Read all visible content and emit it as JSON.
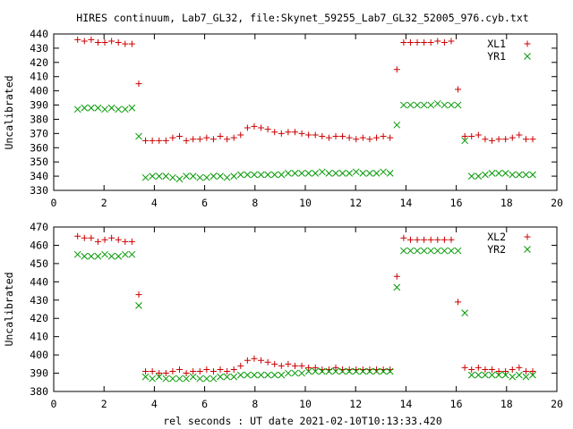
{
  "title": "HIRES continuum, Lab7_GL32, file:Skynet_59255_Lab7_GL32_52005_976.cyb.txt",
  "xlabel": "rel seconds : UT date 2021-02-10T10:13:33.420",
  "colors": {
    "plus": "#cc0000",
    "cross": "#009900",
    "axis": "#000000"
  },
  "chart_data": [
    {
      "type": "scatter",
      "ylabel": "Uncalibrated",
      "xlim": [
        0,
        20
      ],
      "ylim": [
        330,
        440
      ],
      "xticks": [
        0,
        2,
        4,
        6,
        8,
        10,
        12,
        14,
        16,
        18,
        20
      ],
      "yticks": [
        330,
        340,
        350,
        360,
        370,
        380,
        390,
        400,
        410,
        420,
        430,
        440
      ],
      "legend": "top-right",
      "series": [
        {
          "name": "XL1",
          "marker": "plus",
          "x": [
            0.95,
            1.22,
            1.49,
            1.76,
            2.03,
            2.3,
            2.57,
            2.84,
            3.11,
            3.38,
            3.65,
            3.92,
            4.19,
            4.46,
            4.73,
            5.0,
            5.27,
            5.54,
            5.81,
            6.08,
            6.35,
            6.62,
            6.89,
            7.16,
            7.43,
            7.7,
            7.97,
            8.24,
            8.51,
            8.78,
            9.05,
            9.32,
            9.59,
            9.86,
            10.13,
            10.4,
            10.67,
            10.94,
            11.21,
            11.48,
            11.75,
            12.02,
            12.29,
            12.56,
            12.83,
            13.1,
            13.37,
            13.64,
            13.91,
            14.18,
            14.45,
            14.72,
            14.99,
            15.26,
            15.53,
            15.8,
            16.07,
            16.34,
            16.61,
            16.88,
            17.15,
            17.42,
            17.69,
            17.96,
            18.23,
            18.5,
            18.77,
            19.04
          ],
          "y": [
            436,
            435,
            436,
            434,
            434,
            435,
            434,
            433,
            433,
            405,
            365,
            365,
            365,
            365,
            367,
            368,
            365,
            366,
            366,
            367,
            366,
            368,
            366,
            367,
            369,
            374,
            375,
            374,
            373,
            371,
            370,
            371,
            371,
            370,
            369,
            369,
            368,
            367,
            368,
            368,
            367,
            366,
            367,
            366,
            367,
            368,
            367,
            415,
            434,
            434,
            434,
            434,
            434,
            435,
            434,
            435,
            401,
            368,
            368,
            369,
            366,
            365,
            366,
            366,
            367,
            369,
            366,
            366
          ],
          "note": ""
        },
        {
          "name": "YR1",
          "marker": "cross",
          "x": [
            0.95,
            1.22,
            1.49,
            1.76,
            2.03,
            2.3,
            2.57,
            2.84,
            3.11,
            3.38,
            3.65,
            3.92,
            4.19,
            4.46,
            4.73,
            5.0,
            5.27,
            5.54,
            5.81,
            6.08,
            6.35,
            6.62,
            6.89,
            7.16,
            7.43,
            7.7,
            7.97,
            8.24,
            8.51,
            8.78,
            9.05,
            9.32,
            9.59,
            9.86,
            10.13,
            10.4,
            10.67,
            10.94,
            11.21,
            11.48,
            11.75,
            12.02,
            12.29,
            12.56,
            12.83,
            13.1,
            13.37,
            13.64,
            13.91,
            14.18,
            14.45,
            14.72,
            14.99,
            15.26,
            15.53,
            15.8,
            16.07,
            16.34,
            16.61,
            16.88,
            17.15,
            17.42,
            17.69,
            17.96,
            18.23,
            18.5,
            18.77,
            19.04
          ],
          "y": [
            387,
            388,
            388,
            388,
            387,
            388,
            387,
            387,
            388,
            368,
            339,
            340,
            340,
            340,
            339,
            338,
            340,
            340,
            339,
            339,
            340,
            340,
            339,
            340,
            341,
            341,
            341,
            341,
            341,
            341,
            341,
            342,
            342,
            342,
            342,
            342,
            343,
            342,
            342,
            342,
            342,
            343,
            342,
            342,
            342,
            343,
            342,
            376,
            390,
            390,
            390,
            390,
            390,
            391,
            390,
            390,
            390,
            365,
            340,
            340,
            341,
            342,
            342,
            342,
            341,
            341,
            341,
            341
          ],
          "note": ""
        }
      ]
    },
    {
      "type": "scatter",
      "ylabel": "Uncalibrated",
      "xlim": [
        0,
        20
      ],
      "ylim": [
        380,
        470
      ],
      "xticks": [
        0,
        2,
        4,
        6,
        8,
        10,
        12,
        14,
        16,
        18,
        20
      ],
      "yticks": [
        380,
        390,
        400,
        410,
        420,
        430,
        440,
        450,
        460,
        470
      ],
      "legend": "top-right",
      "series": [
        {
          "name": "XL2",
          "marker": "plus",
          "x": [
            0.95,
            1.22,
            1.49,
            1.76,
            2.03,
            2.3,
            2.57,
            2.84,
            3.11,
            3.38,
            3.65,
            3.92,
            4.19,
            4.46,
            4.73,
            5.0,
            5.27,
            5.54,
            5.81,
            6.08,
            6.35,
            6.62,
            6.89,
            7.16,
            7.43,
            7.7,
            7.97,
            8.24,
            8.51,
            8.78,
            9.05,
            9.32,
            9.59,
            9.86,
            10.13,
            10.4,
            10.67,
            10.94,
            11.21,
            11.48,
            11.75,
            12.02,
            12.29,
            12.56,
            12.83,
            13.1,
            13.37,
            13.64,
            13.91,
            14.18,
            14.45,
            14.72,
            14.99,
            15.26,
            15.53,
            15.8,
            16.07,
            16.34,
            16.61,
            16.88,
            17.15,
            17.42,
            17.69,
            17.96,
            18.23,
            18.5,
            18.77,
            19.04
          ],
          "y": [
            465,
            464,
            464,
            462,
            463,
            464,
            463,
            462,
            462,
            433,
            391,
            391,
            390,
            390,
            391,
            392,
            390,
            391,
            391,
            392,
            391,
            392,
            391,
            392,
            394,
            397,
            398,
            397,
            396,
            395,
            394,
            395,
            394,
            394,
            393,
            393,
            392,
            392,
            393,
            392,
            392,
            392,
            392,
            392,
            392,
            392,
            392,
            443,
            464,
            463,
            463,
            463,
            463,
            463,
            463,
            463,
            429,
            393,
            392,
            393,
            392,
            392,
            391,
            391,
            392,
            393,
            391,
            391
          ],
          "note": ""
        },
        {
          "name": "YR2",
          "marker": "cross",
          "x": [
            0.95,
            1.22,
            1.49,
            1.76,
            2.03,
            2.3,
            2.57,
            2.84,
            3.11,
            3.38,
            3.65,
            3.92,
            4.19,
            4.46,
            4.73,
            5.0,
            5.27,
            5.54,
            5.81,
            6.08,
            6.35,
            6.62,
            6.89,
            7.16,
            7.43,
            7.7,
            7.97,
            8.24,
            8.51,
            8.78,
            9.05,
            9.32,
            9.59,
            9.86,
            10.13,
            10.4,
            10.67,
            10.94,
            11.21,
            11.48,
            11.75,
            12.02,
            12.29,
            12.56,
            12.83,
            13.1,
            13.37,
            13.64,
            13.91,
            14.18,
            14.45,
            14.72,
            14.99,
            15.26,
            15.53,
            15.8,
            16.07,
            16.34,
            16.61,
            16.88,
            17.15,
            17.42,
            17.69,
            17.96,
            18.23,
            18.5,
            18.77,
            19.04
          ],
          "y": [
            455,
            454,
            454,
            454,
            455,
            454,
            454,
            455,
            455,
            427,
            388,
            387,
            388,
            387,
            387,
            387,
            387,
            388,
            387,
            387,
            387,
            388,
            388,
            388,
            389,
            389,
            389,
            389,
            389,
            389,
            389,
            390,
            390,
            390,
            391,
            391,
            391,
            391,
            391,
            391,
            391,
            391,
            391,
            391,
            391,
            391,
            391,
            437,
            457,
            457,
            457,
            457,
            457,
            457,
            457,
            457,
            457,
            423,
            389,
            389,
            389,
            389,
            389,
            389,
            388,
            389,
            388,
            389
          ],
          "note": ""
        }
      ]
    }
  ]
}
